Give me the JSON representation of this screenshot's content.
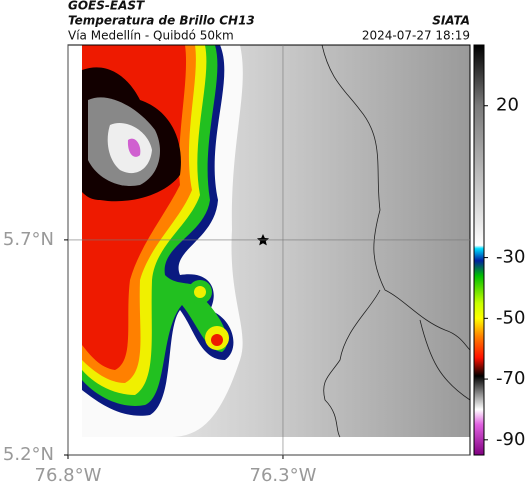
{
  "header": {
    "satellite": "GOES-EAST",
    "product": "Temperatura de Brillo CH13",
    "region": "Vía Medellín - Quibdó 50km",
    "source": "SIATA",
    "timestamp": "2024-07-27 18:19"
  },
  "map": {
    "xlim": [
      -76.8,
      -75.865
    ],
    "ylim": [
      5.2,
      6.153
    ],
    "xticks": [
      {
        "value": -76.8,
        "label": "76.8°W"
      },
      {
        "value": -76.3,
        "label": "76.3°W"
      }
    ],
    "yticks": [
      {
        "value": 5.2,
        "label": "5.2°N"
      },
      {
        "value": 5.7,
        "label": "5.7°N"
      }
    ],
    "grid": true
  },
  "colorbar": {
    "lim": [
      -95,
      40
    ],
    "ticks": [
      20,
      -30,
      -50,
      -70,
      -90
    ],
    "colormap": [
      {
        "value": 40,
        "color": "#000000"
      },
      {
        "value": 20,
        "color": "#7a7a7a"
      },
      {
        "value": -26,
        "color": "#ffffff"
      },
      {
        "value": -27,
        "color": "#00e0ff"
      },
      {
        "value": -31,
        "color": "#0020a0"
      },
      {
        "value": -36,
        "color": "#00c000"
      },
      {
        "value": -45,
        "color": "#c8ff00"
      },
      {
        "value": -50,
        "color": "#ffff00"
      },
      {
        "value": -56,
        "color": "#ff8000"
      },
      {
        "value": -63,
        "color": "#ff1000"
      },
      {
        "value": -69,
        "color": "#000000"
      },
      {
        "value": -75,
        "color": "#909090"
      },
      {
        "value": -80,
        "color": "#ffffff"
      },
      {
        "value": -85,
        "color": "#e060e0"
      },
      {
        "value": -95,
        "color": "#800080"
      }
    ]
  }
}
